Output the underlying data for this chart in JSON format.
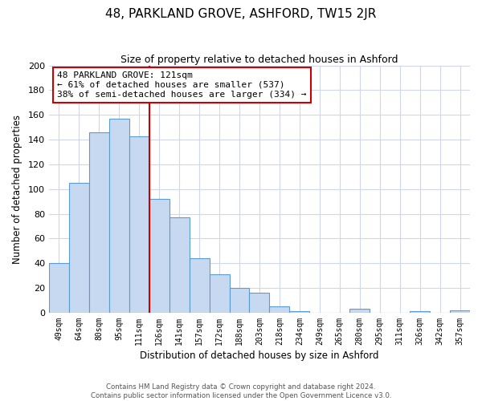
{
  "title": "48, PARKLAND GROVE, ASHFORD, TW15 2JR",
  "subtitle": "Size of property relative to detached houses in Ashford",
  "xlabel": "Distribution of detached houses by size in Ashford",
  "ylabel": "Number of detached properties",
  "bar_labels": [
    "49sqm",
    "64sqm",
    "80sqm",
    "95sqm",
    "111sqm",
    "126sqm",
    "141sqm",
    "157sqm",
    "172sqm",
    "188sqm",
    "203sqm",
    "218sqm",
    "234sqm",
    "249sqm",
    "265sqm",
    "280sqm",
    "295sqm",
    "311sqm",
    "326sqm",
    "342sqm",
    "357sqm"
  ],
  "bar_values": [
    40,
    105,
    146,
    157,
    143,
    92,
    77,
    44,
    31,
    20,
    16,
    5,
    1,
    0,
    0,
    3,
    0,
    0,
    1,
    0,
    2
  ],
  "bar_color": "#c6d9f0",
  "bar_edge_color": "#5b9bd5",
  "vline_x_idx": 5,
  "vline_color": "#cc0000",
  "annotation_title": "48 PARKLAND GROVE: 121sqm",
  "annotation_line1": "← 61% of detached houses are smaller (537)",
  "annotation_line2": "38% of semi-detached houses are larger (334) →",
  "annotation_box_color": "#ffffff",
  "annotation_box_edge_color": "#cc0000",
  "ylim": [
    0,
    200
  ],
  "yticks": [
    0,
    20,
    40,
    60,
    80,
    100,
    120,
    140,
    160,
    180,
    200
  ],
  "footer1": "Contains HM Land Registry data © Crown copyright and database right 2024.",
  "footer2": "Contains public sector information licensed under the Open Government Licence v3.0.",
  "bg_color": "#ffffff",
  "grid_color": "#d0d8e8"
}
